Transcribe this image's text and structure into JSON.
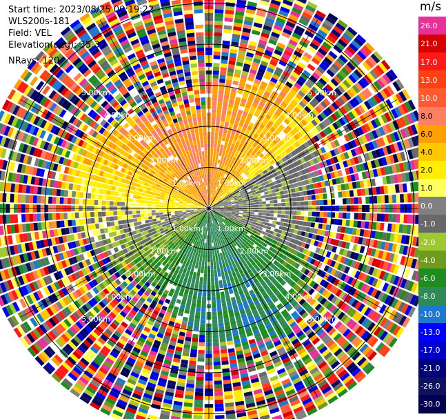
{
  "info": {
    "start_time": "Start time: 2023/08/25 00:19:22",
    "instrument": "WLS200s-181",
    "field": "Field: VEL",
    "elevation": "Elevation(deg): 35.30",
    "nrays": "NRays: 120"
  },
  "colorbar": {
    "title": "m/s",
    "levels": [
      {
        "label": "26.0",
        "color": "#e8309a"
      },
      {
        "label": "21.0",
        "color": "#d60000"
      },
      {
        "label": "17.0",
        "color": "#ff1a1a"
      },
      {
        "label": "13.0",
        "color": "#ff4010"
      },
      {
        "label": "10.0",
        "color": "#ff5a30"
      },
      {
        "label": "8.0",
        "color": "#ff8060"
      },
      {
        "label": "6.0",
        "color": "#ffa000"
      },
      {
        "label": "4.0",
        "color": "#ffc800"
      },
      {
        "label": "2.0",
        "color": "#ffee00"
      },
      {
        "label": "1.0",
        "color": "#ffff60"
      },
      {
        "label": "0.0",
        "color": "#808080"
      },
      {
        "label": "-1.0",
        "color": "#686868"
      },
      {
        "label": "-2.0",
        "color": "#a0c830"
      },
      {
        "label": "-4.0",
        "color": "#6e9a1e"
      },
      {
        "label": "-6.0",
        "color": "#1e8c1e"
      },
      {
        "label": "-8.0",
        "color": "#2e8b57"
      },
      {
        "label": "-10.0",
        "color": "#1e78d2"
      },
      {
        "label": "-13.0",
        "color": "#0000ff"
      },
      {
        "label": "-17.0",
        "color": "#0000c8"
      },
      {
        "label": "-21.0",
        "color": "#00007a"
      },
      {
        "label": "-26.0",
        "color": "#101060"
      },
      {
        "label": "-30.0",
        "color": "#000050"
      }
    ]
  },
  "range_labels": [
    "1.00km",
    "2.00km",
    "3.00km",
    "4.00km",
    "5.00km"
  ],
  "chart_data": {
    "type": "heatmap",
    "description": "PPI plan-position display of Doppler lidar radial velocity",
    "field": "VEL",
    "units": "m/s",
    "nrays": 120,
    "elevation_deg": 35.3,
    "range_rings_km": [
      1.0,
      2.0,
      3.0,
      4.0,
      5.0
    ],
    "max_range_km": 5.6,
    "color_levels": [
      26.0,
      21.0,
      17.0,
      13.0,
      10.0,
      8.0,
      6.0,
      4.0,
      2.0,
      1.0,
      0.0,
      -1.0,
      -2.0,
      -4.0,
      -6.0,
      -8.0,
      -10.0,
      -13.0,
      -17.0,
      -21.0,
      -26.0,
      -30.0
    ],
    "pattern": {
      "north_sector_near_range": "positive 4 to 10 m/s (orange/yellow)",
      "east_sector_near_range": "near 0 m/s (grey)",
      "south_sector_near_range": "negative -4 to -10 m/s (green/blue)",
      "west_sector_near_range": "negative -1 to -4 m/s (olive/grey)",
      "beyond_3km": "noisy, random colours (low SNR)"
    }
  }
}
